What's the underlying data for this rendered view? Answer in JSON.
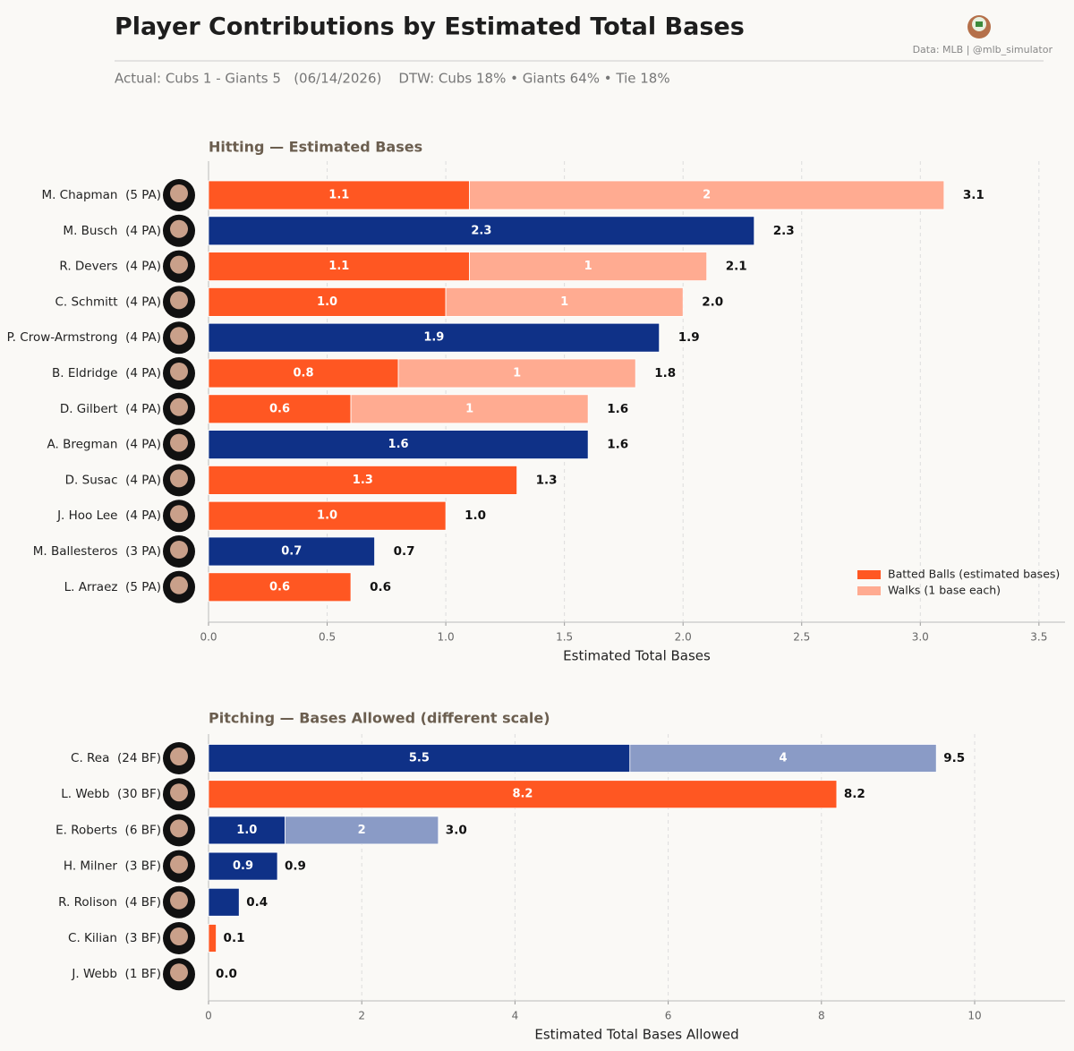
{
  "header": {
    "title": "Player Contributions by Estimated Total Bases",
    "source": "Data: MLB  |  @mlb_simulator",
    "subtitle": "Actual: Cubs 1 - Giants 5   (06/14/2026)    DTW: Cubs 18% • Giants 64% • Tie 18%"
  },
  "chart_data": [
    {
      "type": "bar",
      "orientation": "horizontal",
      "stacked": true,
      "title": "Hitting  —  Estimated Bases",
      "xlabel": "Estimated Total Bases",
      "categories": [
        "M. Chapman  (5 PA)",
        "M. Busch  (4 PA)",
        "R. Devers  (4 PA)",
        "C. Schmitt  (4 PA)",
        "P. Crow-Armstrong  (4 PA)",
        "B. Eldridge  (4 PA)",
        "D. Gilbert  (4 PA)",
        "A. Bregman  (4 PA)",
        "D. Susac  (4 PA)",
        "J. Hoo Lee  (4 PA)",
        "M. Ballesteros  (3 PA)",
        "L. Arraez  (5 PA)"
      ],
      "series": [
        {
          "name": "Batted Balls (estimated bases)",
          "color": "#ff5722",
          "values": [
            1.1,
            2.3,
            1.1,
            1.0,
            1.9,
            0.8,
            0.6,
            1.6,
            1.3,
            1.0,
            0.7,
            0.6
          ],
          "value_labels": [
            "1.1",
            "2.3",
            "1.1",
            "1.0",
            "1.9",
            "0.8",
            "0.6",
            "1.6",
            "1.3",
            "1.0",
            "0.7",
            "0.6"
          ],
          "colors": [
            "#ff5722",
            "#0f3187",
            "#ff5722",
            "#ff5722",
            "#0f3187",
            "#ff5722",
            "#ff5722",
            "#0f3187",
            "#ff5722",
            "#ff5722",
            "#0f3187",
            "#ff5722"
          ]
        },
        {
          "name": "Walks (1 base each)",
          "color": "#ffab91",
          "values": [
            2,
            null,
            1,
            1,
            null,
            1,
            1,
            null,
            null,
            null,
            null,
            null
          ],
          "colors": [
            "#ffab91",
            null,
            "#ffab91",
            "#ffab91",
            null,
            "#ffab91",
            "#ffab91",
            null,
            null,
            null,
            null,
            null
          ]
        }
      ],
      "totals": [
        3.1,
        2.3,
        2.1,
        2.0,
        1.9,
        1.8,
        1.6,
        1.6,
        1.3,
        1.0,
        0.7,
        0.6
      ],
      "totals_labels": [
        "3.1",
        "2.3",
        "2.1",
        "2.0",
        "1.9",
        "1.8",
        "1.6",
        "1.6",
        "1.3",
        "1.0",
        "0.7",
        "0.6"
      ],
      "xlim": [
        0,
        3.61
      ],
      "xticks": [
        {
          "value": 0,
          "label": "0.0"
        },
        0.5,
        {
          "value": 1,
          "label": "1.0"
        },
        1.5,
        {
          "value": 2,
          "label": "2.0"
        },
        2.5,
        {
          "value": 3,
          "label": "3.0"
        },
        3.5
      ],
      "grid": true,
      "legend": "lower right"
    },
    {
      "type": "bar",
      "orientation": "horizontal",
      "stacked": true,
      "title": "Pitching  —  Bases Allowed  (different scale)",
      "xlabel": "Estimated Total Bases Allowed",
      "categories": [
        "C. Rea  (24 BF)",
        "L. Webb  (30 BF)",
        "E. Roberts  (6 BF)",
        "H. Milner  (3 BF)",
        "R. Rolison  (4 BF)",
        "C. Kilian  (3 BF)",
        "J. Webb  (1 BF)"
      ],
      "series": [
        {
          "values": [
            5.5,
            8.2,
            1.0,
            0.9,
            0.4,
            0.1,
            0.0
          ],
          "value_labels": [
            "5.5",
            "8.2",
            "1.0",
            "0.9",
            null,
            null,
            null
          ],
          "colors": [
            "#0f3187",
            "#ff5722",
            "#0f3187",
            "#0f3187",
            "#0f3187",
            "#ff5722",
            "#0f3187"
          ]
        },
        {
          "values": [
            4,
            null,
            2,
            null,
            null,
            null,
            null
          ],
          "colors": [
            "#8a9bc6",
            null,
            "#8a9bc6",
            null,
            null,
            null,
            null
          ]
        }
      ],
      "totals": [
        9.5,
        8.2,
        3.0,
        0.9,
        0.4,
        0.1,
        0.0
      ],
      "totals_labels": [
        "9.5",
        "8.2",
        "3.0",
        "0.9",
        "0.4",
        "0.1",
        "0.0"
      ],
      "xlim": [
        0,
        11.18
      ],
      "xticks": [
        0,
        2,
        4,
        6,
        8,
        10
      ],
      "grid": true
    }
  ]
}
